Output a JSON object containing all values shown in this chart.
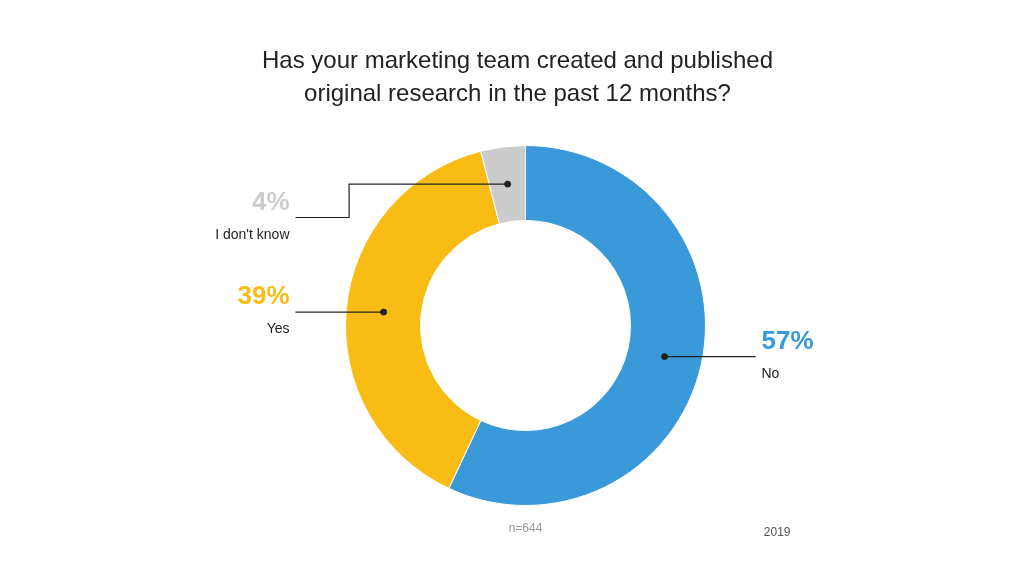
{
  "chart_data": {
    "type": "donut",
    "title": "Has your marketing team created and published original research in the past 12 months?",
    "categories": [
      "No",
      "Yes",
      "I don't know"
    ],
    "values": [
      57,
      39,
      4
    ],
    "value_labels": [
      "57%",
      "39%",
      "4%"
    ],
    "colors": [
      "#3a9ad9",
      "#f9bc15",
      "#cccccc"
    ],
    "annotations": [
      "n=644",
      "2019"
    ]
  }
}
